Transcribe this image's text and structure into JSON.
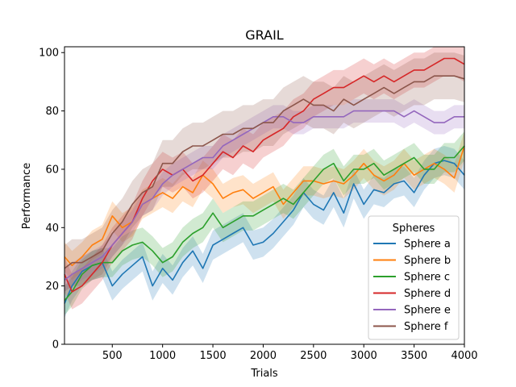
{
  "chart_data": {
    "type": "line",
    "title": "GRAIL",
    "xlabel": "Trials",
    "ylabel": "Performance",
    "xlim": [
      25,
      4000
    ],
    "ylim": [
      0,
      102
    ],
    "xticks": [
      500,
      1000,
      1500,
      2000,
      2500,
      3000,
      3500,
      4000
    ],
    "yticks": [
      0,
      20,
      40,
      60,
      80,
      100
    ],
    "grid": false,
    "legend": {
      "title": "Spheres",
      "placement": "lower-right"
    },
    "x": [
      25,
      100,
      200,
      300,
      400,
      500,
      600,
      700,
      800,
      900,
      1000,
      1100,
      1200,
      1300,
      1400,
      1500,
      1600,
      1700,
      1800,
      1900,
      2000,
      2100,
      2200,
      2300,
      2400,
      2500,
      2600,
      2700,
      2800,
      2900,
      3000,
      3100,
      3200,
      3300,
      3400,
      3500,
      3600,
      3700,
      3800,
      3900,
      4000
    ],
    "series": [
      {
        "name": "Sphere a",
        "color": "#1f77b4",
        "band": 5,
        "values": [
          14,
          20,
          25,
          27,
          28,
          20,
          24,
          27,
          30,
          20,
          26,
          22,
          28,
          32,
          26,
          34,
          36,
          38,
          40,
          34,
          35,
          38,
          42,
          46,
          52,
          48,
          46,
          52,
          45,
          55,
          48,
          53,
          52,
          55,
          56,
          52,
          58,
          62,
          63,
          62,
          58
        ]
      },
      {
        "name": "Sphere b",
        "color": "#ff7f0e",
        "band": 5,
        "values": [
          30,
          27,
          30,
          34,
          36,
          44,
          40,
          42,
          48,
          50,
          52,
          50,
          54,
          52,
          58,
          55,
          50,
          52,
          53,
          50,
          52,
          54,
          48,
          52,
          56,
          56,
          55,
          56,
          55,
          58,
          62,
          58,
          56,
          58,
          62,
          58,
          60,
          62,
          60,
          57,
          68
        ]
      },
      {
        "name": "Sphere c",
        "color": "#2ca02c",
        "band": 5,
        "values": [
          15,
          18,
          24,
          27,
          28,
          28,
          32,
          34,
          35,
          32,
          28,
          30,
          35,
          38,
          40,
          45,
          40,
          42,
          44,
          44,
          46,
          48,
          50,
          48,
          52,
          56,
          60,
          62,
          56,
          60,
          60,
          62,
          58,
          60,
          62,
          64,
          60,
          60,
          64,
          64,
          68
        ]
      },
      {
        "name": "Sphere d",
        "color": "#d62728",
        "band": 6,
        "values": [
          24,
          18,
          20,
          24,
          28,
          34,
          38,
          42,
          50,
          56,
          60,
          58,
          60,
          56,
          58,
          62,
          66,
          64,
          68,
          66,
          70,
          72,
          74,
          78,
          80,
          84,
          86,
          88,
          88,
          90,
          92,
          90,
          92,
          90,
          92,
          94,
          94,
          96,
          98,
          98,
          96
        ]
      },
      {
        "name": "Sphere e",
        "color": "#9467bd",
        "band": 4,
        "values": [
          22,
          24,
          26,
          28,
          30,
          34,
          38,
          42,
          48,
          50,
          55,
          58,
          60,
          62,
          64,
          64,
          68,
          70,
          72,
          74,
          76,
          78,
          78,
          76,
          76,
          78,
          78,
          78,
          78,
          80,
          80,
          80,
          80,
          80,
          78,
          80,
          78,
          76,
          76,
          78,
          78
        ]
      },
      {
        "name": "Sphere f",
        "color": "#8c564b",
        "band": 8,
        "values": [
          26,
          28,
          28,
          30,
          32,
          38,
          42,
          48,
          52,
          54,
          62,
          62,
          66,
          68,
          68,
          70,
          72,
          72,
          74,
          74,
          76,
          76,
          80,
          82,
          84,
          82,
          82,
          80,
          84,
          82,
          84,
          86,
          88,
          86,
          88,
          90,
          90,
          92,
          92,
          92,
          91
        ]
      }
    ]
  }
}
